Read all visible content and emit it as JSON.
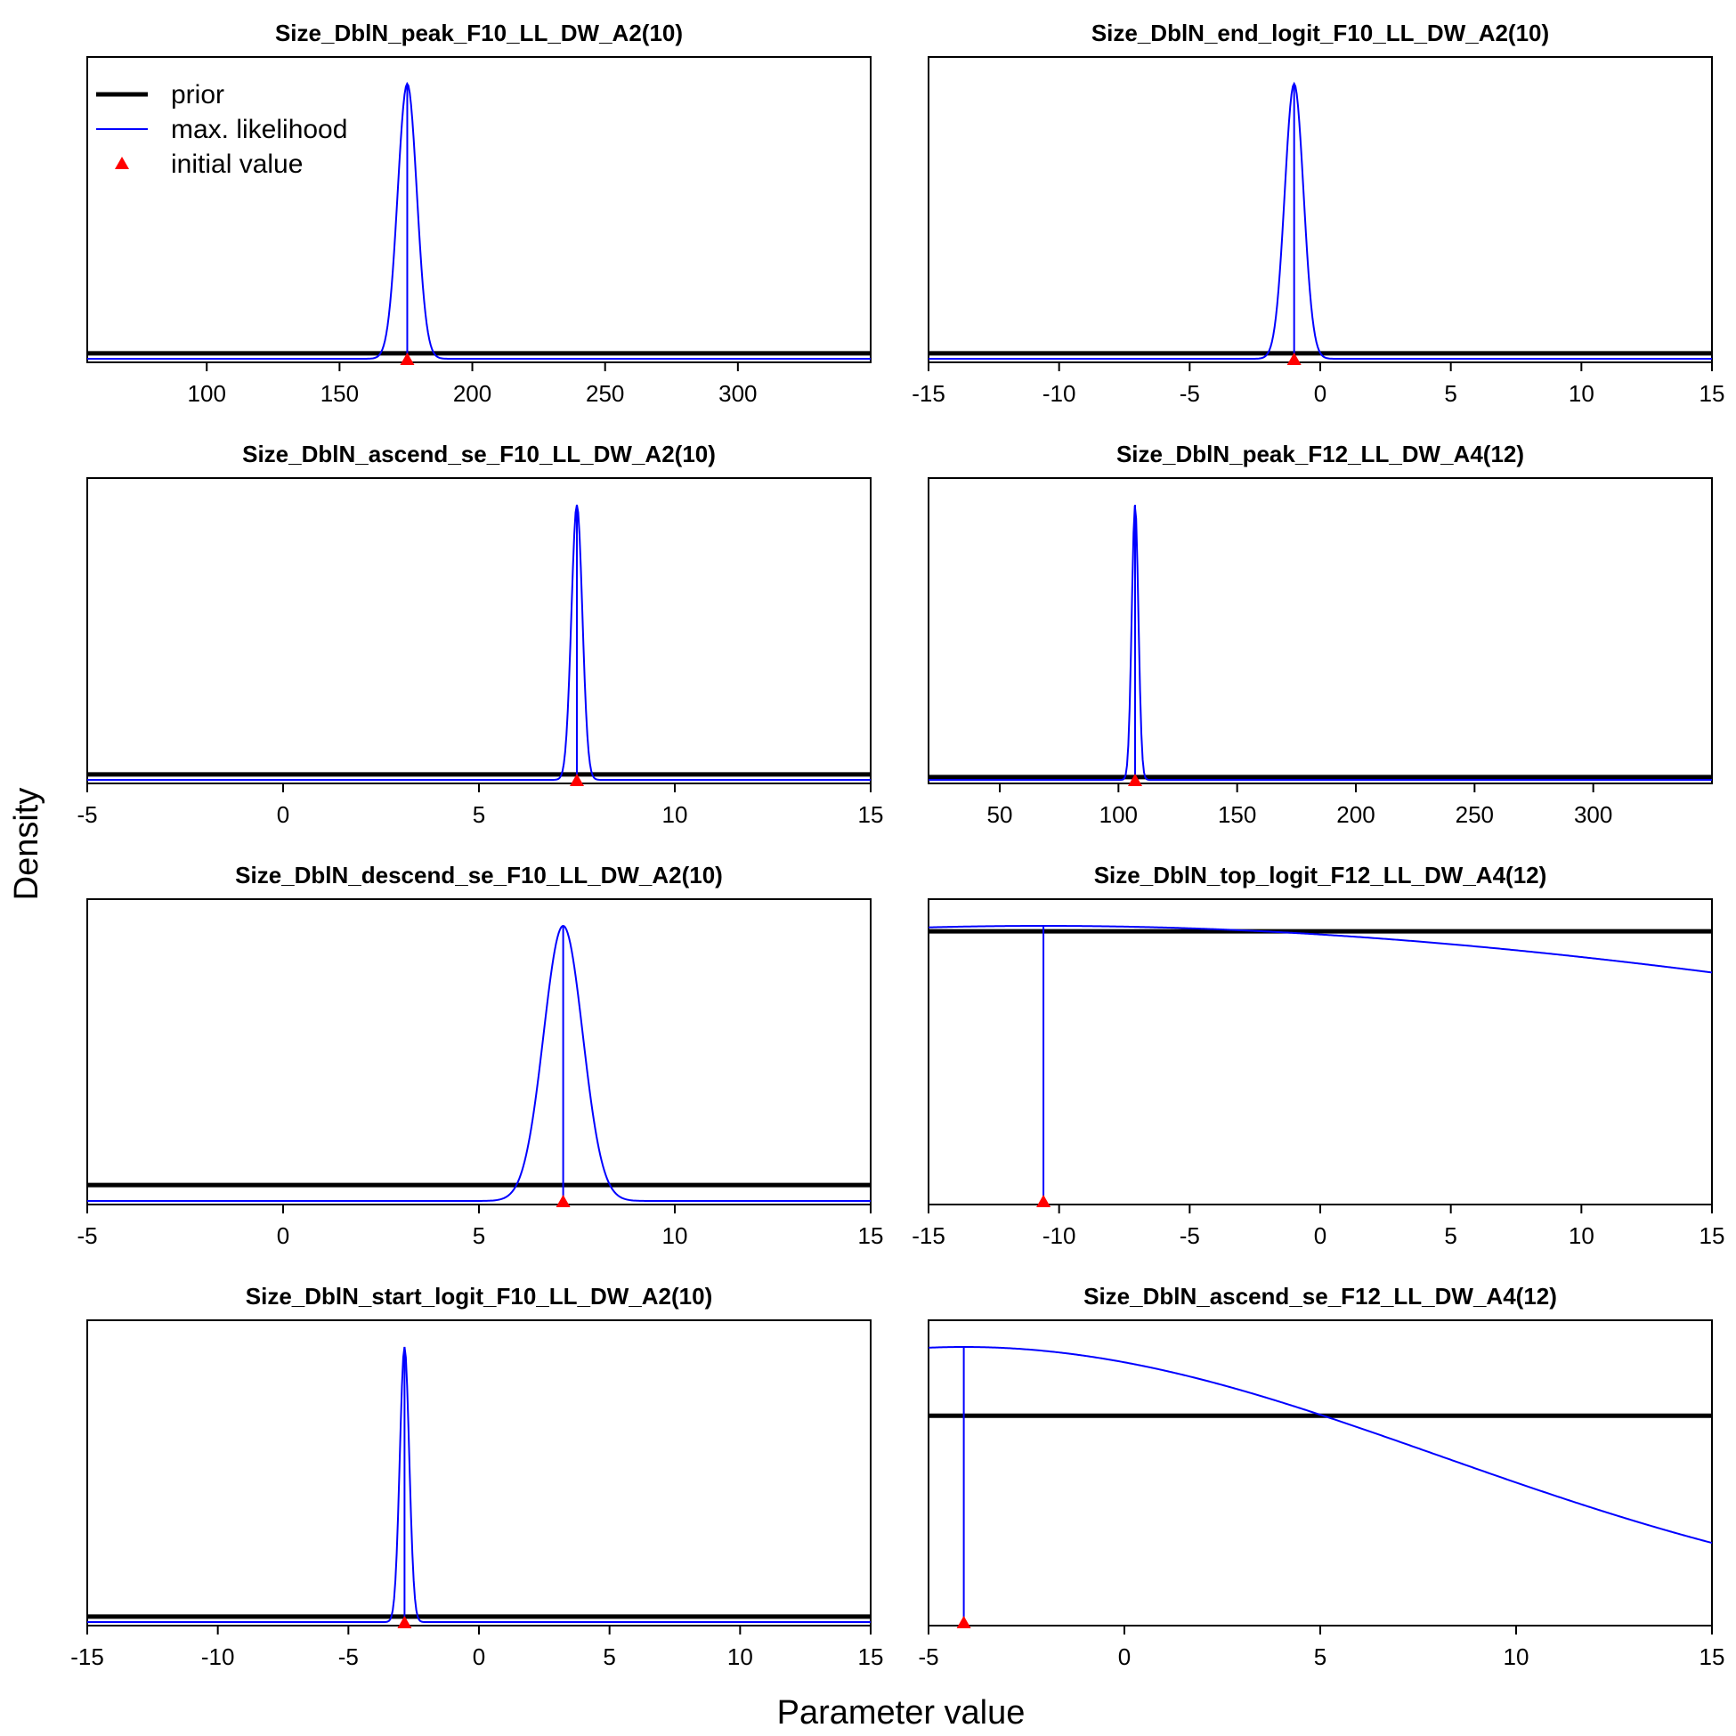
{
  "figure": {
    "xlabel": "Parameter value",
    "ylabel": "Density"
  },
  "legend": {
    "placement": "top-left of first panel",
    "items": [
      {
        "label": "prior",
        "color": "#000000",
        "style": "thick-line"
      },
      {
        "label": "max. likelihood",
        "color": "#0000ff",
        "style": "thin-line"
      },
      {
        "label": "initial value",
        "color": "#ff0000",
        "style": "triangle"
      }
    ]
  },
  "colors": {
    "prior": "#000000",
    "mle": "#0000ff",
    "initial": "#ff0000"
  },
  "chart_data": [
    {
      "type": "line",
      "title": "Size_DblN_peak_F10_LL_DW_A2(10)",
      "xlim": [
        55,
        350
      ],
      "ticks": [
        100,
        150,
        200,
        250,
        300
      ],
      "mle": 175.5,
      "sd": 3.6,
      "init": 175.5,
      "prior_level": 0.02,
      "curve": "normal"
    },
    {
      "type": "line",
      "title": "Size_DblN_end_logit_F10_LL_DW_A2(10)",
      "xlim": [
        -15,
        15
      ],
      "ticks": [
        -15,
        -10,
        -5,
        0,
        5,
        10,
        15
      ],
      "mle": -1.0,
      "sd": 0.36,
      "init": -1.0,
      "prior_level": 0.02,
      "curve": "normal"
    },
    {
      "type": "line",
      "title": "Size_DblN_ascend_se_F10_LL_DW_A2(10)",
      "xlim": [
        -5,
        15
      ],
      "ticks": [
        -5,
        0,
        5,
        10,
        15
      ],
      "mle": 7.5,
      "sd": 0.14,
      "init": 7.5,
      "prior_level": 0.02,
      "curve": "normal"
    },
    {
      "type": "line",
      "title": "Size_DblN_peak_F12_LL_DW_A4(12)",
      "xlim": [
        20,
        350
      ],
      "ticks": [
        50,
        100,
        150,
        200,
        250,
        300
      ],
      "mle": 107,
      "sd": 1.4,
      "init": 107,
      "prior_level": 0.01,
      "curve": "normal"
    },
    {
      "type": "line",
      "title": "Size_DblN_descend_se_F10_LL_DW_A2(10)",
      "xlim": [
        -5,
        15
      ],
      "ticks": [
        -5,
        0,
        5,
        10,
        15
      ],
      "mle": 7.15,
      "sd": 0.5,
      "init": 7.15,
      "prior_level": 0.058,
      "curve": "normal"
    },
    {
      "type": "line",
      "title": "Size_DblN_top_logit_F12_LL_DW_A4(12)",
      "xlim": [
        -15,
        15
      ],
      "ticks": [
        -15,
        -10,
        -5,
        0,
        5,
        10,
        15
      ],
      "mle": -10.6,
      "sd": 42,
      "init": -10.6,
      "prior_level": 0.98,
      "curve": "normal"
    },
    {
      "type": "line",
      "title": "Size_DblN_start_logit_F10_LL_DW_A2(10)",
      "xlim": [
        -15,
        15
      ],
      "ticks": [
        -15,
        -10,
        -5,
        0,
        5,
        10,
        15
      ],
      "mle": -2.85,
      "sd": 0.18,
      "init": -2.85,
      "prior_level": 0.02,
      "curve": "normal"
    },
    {
      "type": "line",
      "title": "Size_DblN_ascend_se_F12_LL_DW_A4(12)",
      "xlim": [
        -5,
        15
      ],
      "ticks": [
        -5,
        0,
        5,
        10,
        15
      ],
      "mle": -4.1,
      "sd": 12.1,
      "init": -4.1,
      "prior_level": 0.75,
      "curve": "normal"
    }
  ]
}
